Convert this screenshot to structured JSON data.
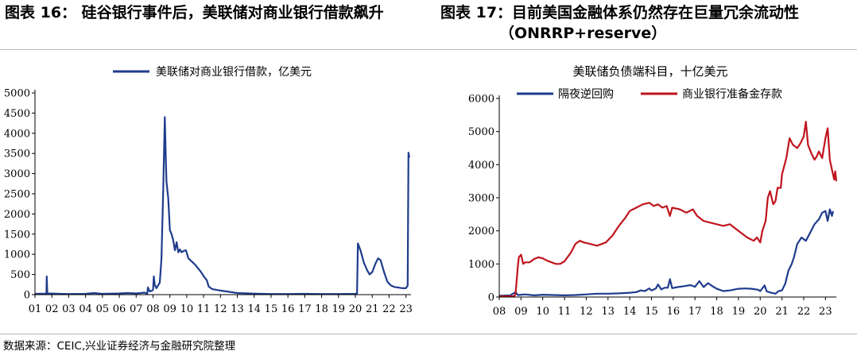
{
  "titles": {
    "left": "图表 16： 硅谷银行事件后，美联储对商业银行借款飙升",
    "right_line1": "图表 17：目前美国金融体系仍然存在巨量冗余流动性",
    "right_line2": "（ONRRP+reserve）"
  },
  "source": "数据来源：CEIC,兴业证券经济与金融研究院整理",
  "colors": {
    "navy": "#1f3c8c",
    "red": "#c0141c",
    "axis": "#000000"
  },
  "chart_data": [
    {
      "type": "line",
      "title": "",
      "xlabel": "",
      "ylabel": "",
      "ylim": [
        0,
        5000
      ],
      "yticks": [
        "0",
        "500",
        "1000",
        "1500",
        "2000",
        "2500",
        "3000",
        "3500",
        "4000",
        "4500",
        "5000"
      ],
      "xlim": [
        2001,
        2023.3
      ],
      "xticks": [
        "01",
        "02",
        "03",
        "04",
        "05",
        "06",
        "07",
        "08",
        "09",
        "10",
        "11",
        "12",
        "13",
        "14",
        "15",
        "16",
        "17",
        "18",
        "19",
        "20",
        "21",
        "22",
        "23"
      ],
      "legend": {
        "placement": "top",
        "label": "美联储对商业银行借款，亿美元"
      },
      "series": [
        {
          "name": "美联储对商业银行借款，亿美元",
          "color": "#1f3c8c",
          "points": [
            [
              2001.0,
              20
            ],
            [
              2001.68,
              25
            ],
            [
              2001.7,
              450
            ],
            [
              2001.73,
              30
            ],
            [
              2002.5,
              20
            ],
            [
              2003.0,
              15
            ],
            [
              2004.0,
              20
            ],
            [
              2004.5,
              40
            ],
            [
              2005.0,
              20
            ],
            [
              2005.5,
              25
            ],
            [
              2006.0,
              30
            ],
            [
              2006.5,
              40
            ],
            [
              2007.0,
              30
            ],
            [
              2007.5,
              50
            ],
            [
              2007.65,
              20
            ],
            [
              2007.7,
              180
            ],
            [
              2007.8,
              80
            ],
            [
              2007.95,
              100
            ],
            [
              2008.0,
              120
            ],
            [
              2008.05,
              450
            ],
            [
              2008.1,
              250
            ],
            [
              2008.2,
              160
            ],
            [
              2008.4,
              300
            ],
            [
              2008.5,
              900
            ],
            [
              2008.6,
              2500
            ],
            [
              2008.7,
              4400
            ],
            [
              2008.75,
              3500
            ],
            [
              2008.8,
              2800
            ],
            [
              2008.9,
              2400
            ],
            [
              2009.0,
              1600
            ],
            [
              2009.1,
              1500
            ],
            [
              2009.2,
              1350
            ],
            [
              2009.3,
              1100
            ],
            [
              2009.4,
              1300
            ],
            [
              2009.5,
              1050
            ],
            [
              2009.6,
              1120
            ],
            [
              2009.7,
              1050
            ],
            [
              2009.8,
              1080
            ],
            [
              2009.95,
              1100
            ],
            [
              2010.1,
              900
            ],
            [
              2010.3,
              820
            ],
            [
              2010.5,
              740
            ],
            [
              2010.7,
              640
            ],
            [
              2010.85,
              560
            ],
            [
              2011.0,
              460
            ],
            [
              2011.2,
              350
            ],
            [
              2011.3,
              200
            ],
            [
              2011.5,
              140
            ],
            [
              2012.0,
              100
            ],
            [
              2012.5,
              70
            ],
            [
              2013.0,
              40
            ],
            [
              2014.0,
              25
            ],
            [
              2015.0,
              15
            ],
            [
              2016.0,
              15
            ],
            [
              2017.0,
              20
            ],
            [
              2018.0,
              15
            ],
            [
              2019.0,
              15
            ],
            [
              2020.0,
              20
            ],
            [
              2020.1,
              30
            ],
            [
              2020.15,
              1270
            ],
            [
              2020.3,
              1100
            ],
            [
              2020.5,
              800
            ],
            [
              2020.7,
              600
            ],
            [
              2020.85,
              500
            ],
            [
              2021.0,
              560
            ],
            [
              2021.2,
              780
            ],
            [
              2021.35,
              900
            ],
            [
              2021.5,
              850
            ],
            [
              2021.7,
              560
            ],
            [
              2021.9,
              320
            ],
            [
              2022.1,
              230
            ],
            [
              2022.3,
              190
            ],
            [
              2022.5,
              180
            ],
            [
              2022.7,
              165
            ],
            [
              2022.85,
              160
            ],
            [
              2023.0,
              160
            ],
            [
              2023.1,
              220
            ],
            [
              2023.15,
              3520
            ],
            [
              2023.2,
              3400
            ]
          ]
        }
      ]
    },
    {
      "type": "line",
      "title": "美联储负债端科目，十亿美元",
      "xlabel": "",
      "ylabel": "",
      "ylim": [
        0,
        6000
      ],
      "yticks": [
        "0",
        "1000",
        "2000",
        "3000",
        "4000",
        "5000",
        "6000"
      ],
      "xlim": [
        2008,
        2023.5
      ],
      "xticks": [
        "08",
        "09",
        "10",
        "11",
        "12",
        "13",
        "14",
        "15",
        "16",
        "17",
        "18",
        "19",
        "20",
        "21",
        "22",
        "23"
      ],
      "legend": {
        "placement": "top",
        "labels": [
          "隔夜逆回购",
          "商业银行准备金存款"
        ]
      },
      "series": [
        {
          "name": "隔夜逆回购",
          "color": "#1f3c8c",
          "points": [
            [
              2008.0,
              40
            ],
            [
              2008.5,
              50
            ],
            [
              2008.75,
              150
            ],
            [
              2008.85,
              60
            ],
            [
              2009.2,
              80
            ],
            [
              2009.6,
              50
            ],
            [
              2010.0,
              70
            ],
            [
              2010.5,
              60
            ],
            [
              2011.0,
              50
            ],
            [
              2011.5,
              60
            ],
            [
              2012.0,
              80
            ],
            [
              2012.5,
              100
            ],
            [
              2013.0,
              100
            ],
            [
              2013.5,
              110
            ],
            [
              2014.0,
              130
            ],
            [
              2014.3,
              150
            ],
            [
              2014.5,
              200
            ],
            [
              2014.7,
              180
            ],
            [
              2014.9,
              260
            ],
            [
              2015.0,
              200
            ],
            [
              2015.2,
              260
            ],
            [
              2015.3,
              380
            ],
            [
              2015.45,
              230
            ],
            [
              2015.6,
              280
            ],
            [
              2015.75,
              280
            ],
            [
              2015.85,
              540
            ],
            [
              2015.95,
              270
            ],
            [
              2016.2,
              300
            ],
            [
              2016.5,
              330
            ],
            [
              2016.8,
              360
            ],
            [
              2017.0,
              310
            ],
            [
              2017.2,
              480
            ],
            [
              2017.4,
              300
            ],
            [
              2017.6,
              420
            ],
            [
              2017.8,
              330
            ],
            [
              2018.0,
              250
            ],
            [
              2018.3,
              180
            ],
            [
              2018.6,
              200
            ],
            [
              2019.0,
              250
            ],
            [
              2019.3,
              260
            ],
            [
              2019.6,
              250
            ],
            [
              2019.9,
              220
            ],
            [
              2020.0,
              180
            ],
            [
              2020.2,
              350
            ],
            [
              2020.3,
              170
            ],
            [
              2020.5,
              130
            ],
            [
              2020.7,
              100
            ],
            [
              2020.85,
              180
            ],
            [
              2021.0,
              200
            ],
            [
              2021.15,
              400
            ],
            [
              2021.3,
              800
            ],
            [
              2021.45,
              1000
            ],
            [
              2021.55,
              1200
            ],
            [
              2021.7,
              1600
            ],
            [
              2021.9,
              1800
            ],
            [
              2022.1,
              1700
            ],
            [
              2022.3,
              1950
            ],
            [
              2022.5,
              2200
            ],
            [
              2022.7,
              2350
            ],
            [
              2022.85,
              2550
            ],
            [
              2023.0,
              2600
            ],
            [
              2023.1,
              2300
            ],
            [
              2023.2,
              2650
            ],
            [
              2023.3,
              2450
            ],
            [
              2023.35,
              2600
            ]
          ]
        },
        {
          "name": "商业银行准备金存款",
          "color": "#c0141c",
          "points": [
            [
              2008.0,
              20
            ],
            [
              2008.7,
              30
            ],
            [
              2008.75,
              100
            ],
            [
              2008.85,
              900
            ],
            [
              2008.9,
              1200
            ],
            [
              2009.0,
              1280
            ],
            [
              2009.1,
              1000
            ],
            [
              2009.2,
              1050
            ],
            [
              2009.4,
              1050
            ],
            [
              2009.6,
              1150
            ],
            [
              2009.8,
              1200
            ],
            [
              2010.0,
              1170
            ],
            [
              2010.2,
              1100
            ],
            [
              2010.4,
              1050
            ],
            [
              2010.6,
              1000
            ],
            [
              2010.8,
              1000
            ],
            [
              2011.0,
              1080
            ],
            [
              2011.3,
              1350
            ],
            [
              2011.5,
              1600
            ],
            [
              2011.7,
              1700
            ],
            [
              2011.9,
              1650
            ],
            [
              2012.2,
              1600
            ],
            [
              2012.5,
              1550
            ],
            [
              2012.7,
              1600
            ],
            [
              2012.9,
              1650
            ],
            [
              2013.2,
              1850
            ],
            [
              2013.5,
              2150
            ],
            [
              2013.8,
              2400
            ],
            [
              2014.0,
              2600
            ],
            [
              2014.3,
              2700
            ],
            [
              2014.6,
              2800
            ],
            [
              2014.9,
              2850
            ],
            [
              2015.1,
              2750
            ],
            [
              2015.3,
              2800
            ],
            [
              2015.5,
              2700
            ],
            [
              2015.7,
              2750
            ],
            [
              2015.85,
              2450
            ],
            [
              2015.95,
              2700
            ],
            [
              2016.3,
              2650
            ],
            [
              2016.6,
              2550
            ],
            [
              2016.9,
              2650
            ],
            [
              2017.1,
              2450
            ],
            [
              2017.4,
              2300
            ],
            [
              2017.7,
              2250
            ],
            [
              2018.0,
              2200
            ],
            [
              2018.3,
              2150
            ],
            [
              2018.6,
              2200
            ],
            [
              2018.9,
              2050
            ],
            [
              2019.1,
              1950
            ],
            [
              2019.4,
              1800
            ],
            [
              2019.7,
              1700
            ],
            [
              2019.85,
              1800
            ],
            [
              2020.0,
              1650
            ],
            [
              2020.1,
              2000
            ],
            [
              2020.25,
              2300
            ],
            [
              2020.35,
              3000
            ],
            [
              2020.45,
              3200
            ],
            [
              2020.6,
              2800
            ],
            [
              2020.7,
              2900
            ],
            [
              2020.8,
              3300
            ],
            [
              2020.95,
              3300
            ],
            [
              2021.0,
              3700
            ],
            [
              2021.2,
              4200
            ],
            [
              2021.35,
              4800
            ],
            [
              2021.5,
              4600
            ],
            [
              2021.7,
              4500
            ],
            [
              2021.85,
              4650
            ],
            [
              2022.0,
              4850
            ],
            [
              2022.1,
              5300
            ],
            [
              2022.2,
              4600
            ],
            [
              2022.35,
              4350
            ],
            [
              2022.5,
              4150
            ],
            [
              2022.6,
              4250
            ],
            [
              2022.7,
              4400
            ],
            [
              2022.85,
              4200
            ],
            [
              2023.0,
              4800
            ],
            [
              2023.1,
              5100
            ],
            [
              2023.2,
              4150
            ],
            [
              2023.3,
              3850
            ],
            [
              2023.35,
              3700
            ],
            [
              2023.4,
              3550
            ],
            [
              2023.45,
              3800
            ],
            [
              2023.5,
              3500
            ]
          ]
        }
      ]
    }
  ]
}
